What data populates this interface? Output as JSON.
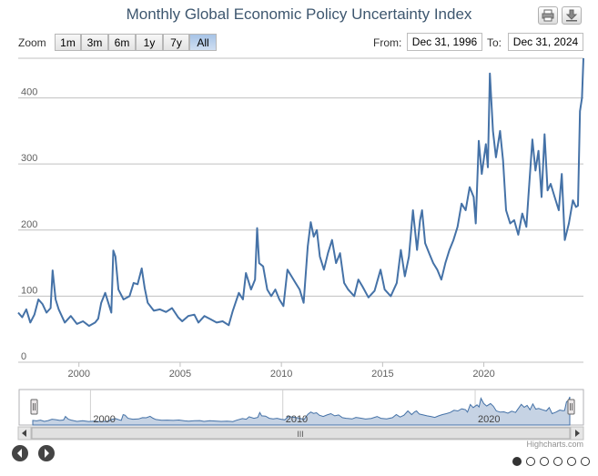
{
  "chart_data": {
    "type": "line",
    "title": "Monthly Global Economic Policy Uncertainty Index",
    "xlabel": "",
    "ylabel": "",
    "ylim": [
      0,
      460
    ],
    "xlim": [
      1997,
      2024.92
    ],
    "x_ticks": [
      "2000",
      "2005",
      "2010",
      "2015",
      "2020"
    ],
    "y_ticks": [
      "0",
      "100",
      "200",
      "300",
      "400"
    ],
    "grid": true,
    "series": [
      {
        "name": "",
        "color": "#4572A7",
        "points": [
          [
            1997.0,
            75
          ],
          [
            1997.2,
            68
          ],
          [
            1997.4,
            80
          ],
          [
            1997.6,
            60
          ],
          [
            1997.8,
            72
          ],
          [
            1998.0,
            95
          ],
          [
            1998.2,
            88
          ],
          [
            1998.4,
            75
          ],
          [
            1998.6,
            82
          ],
          [
            1998.7,
            139
          ],
          [
            1998.85,
            95
          ],
          [
            1999.0,
            80
          ],
          [
            1999.3,
            60
          ],
          [
            1999.6,
            70
          ],
          [
            1999.9,
            58
          ],
          [
            2000.2,
            62
          ],
          [
            2000.5,
            55
          ],
          [
            2000.8,
            60
          ],
          [
            2000.95,
            66
          ],
          [
            2001.1,
            90
          ],
          [
            2001.3,
            105
          ],
          [
            2001.5,
            85
          ],
          [
            2001.6,
            75
          ],
          [
            2001.7,
            169
          ],
          [
            2001.8,
            160
          ],
          [
            2001.95,
            110
          ],
          [
            2002.2,
            95
          ],
          [
            2002.5,
            100
          ],
          [
            2002.7,
            120
          ],
          [
            2002.9,
            118
          ],
          [
            2003.1,
            142
          ],
          [
            2003.25,
            112
          ],
          [
            2003.4,
            90
          ],
          [
            2003.7,
            78
          ],
          [
            2004.0,
            80
          ],
          [
            2004.3,
            76
          ],
          [
            2004.6,
            82
          ],
          [
            2004.9,
            68
          ],
          [
            2005.1,
            62
          ],
          [
            2005.4,
            70
          ],
          [
            2005.7,
            72
          ],
          [
            2005.9,
            60
          ],
          [
            2006.2,
            70
          ],
          [
            2006.5,
            65
          ],
          [
            2006.8,
            60
          ],
          [
            2007.1,
            62
          ],
          [
            2007.4,
            56
          ],
          [
            2007.6,
            78
          ],
          [
            2007.9,
            105
          ],
          [
            2008.1,
            95
          ],
          [
            2008.25,
            135
          ],
          [
            2008.5,
            110
          ],
          [
            2008.7,
            125
          ],
          [
            2008.8,
            203
          ],
          [
            2008.9,
            150
          ],
          [
            2009.1,
            145
          ],
          [
            2009.3,
            110
          ],
          [
            2009.5,
            100
          ],
          [
            2009.7,
            110
          ],
          [
            2009.9,
            95
          ],
          [
            2010.1,
            85
          ],
          [
            2010.3,
            140
          ],
          [
            2010.5,
            130
          ],
          [
            2010.7,
            120
          ],
          [
            2010.9,
            110
          ],
          [
            2011.1,
            90
          ],
          [
            2011.3,
            175
          ],
          [
            2011.45,
            212
          ],
          [
            2011.6,
            190
          ],
          [
            2011.75,
            200
          ],
          [
            2011.9,
            160
          ],
          [
            2012.1,
            140
          ],
          [
            2012.3,
            165
          ],
          [
            2012.5,
            185
          ],
          [
            2012.7,
            150
          ],
          [
            2012.9,
            165
          ],
          [
            2013.1,
            120
          ],
          [
            2013.3,
            110
          ],
          [
            2013.6,
            100
          ],
          [
            2013.8,
            125
          ],
          [
            2014.0,
            115
          ],
          [
            2014.3,
            98
          ],
          [
            2014.6,
            108
          ],
          [
            2014.9,
            140
          ],
          [
            2015.1,
            110
          ],
          [
            2015.4,
            100
          ],
          [
            2015.7,
            120
          ],
          [
            2015.9,
            170
          ],
          [
            2016.1,
            130
          ],
          [
            2016.3,
            160
          ],
          [
            2016.5,
            230
          ],
          [
            2016.7,
            170
          ],
          [
            2016.85,
            215
          ],
          [
            2016.95,
            230
          ],
          [
            2017.1,
            180
          ],
          [
            2017.3,
            165
          ],
          [
            2017.5,
            150
          ],
          [
            2017.7,
            140
          ],
          [
            2017.9,
            125
          ],
          [
            2018.1,
            150
          ],
          [
            2018.3,
            170
          ],
          [
            2018.5,
            185
          ],
          [
            2018.7,
            205
          ],
          [
            2018.9,
            240
          ],
          [
            2019.1,
            230
          ],
          [
            2019.3,
            265
          ],
          [
            2019.5,
            250
          ],
          [
            2019.6,
            210
          ],
          [
            2019.75,
            335
          ],
          [
            2019.9,
            285
          ],
          [
            2020.1,
            330
          ],
          [
            2020.2,
            295
          ],
          [
            2020.3,
            437
          ],
          [
            2020.45,
            350
          ],
          [
            2020.6,
            310
          ],
          [
            2020.8,
            350
          ],
          [
            2020.95,
            305
          ],
          [
            2021.1,
            230
          ],
          [
            2021.3,
            210
          ],
          [
            2021.5,
            215
          ],
          [
            2021.7,
            193
          ],
          [
            2021.9,
            225
          ],
          [
            2022.1,
            205
          ],
          [
            2022.2,
            250
          ],
          [
            2022.4,
            337
          ],
          [
            2022.55,
            290
          ],
          [
            2022.7,
            320
          ],
          [
            2022.85,
            250
          ],
          [
            2023.0,
            345
          ],
          [
            2023.15,
            260
          ],
          [
            2023.3,
            270
          ],
          [
            2023.5,
            250
          ],
          [
            2023.7,
            230
          ],
          [
            2023.85,
            285
          ],
          [
            2024.0,
            185
          ],
          [
            2024.2,
            210
          ],
          [
            2024.4,
            245
          ],
          [
            2024.55,
            235
          ],
          [
            2024.65,
            237
          ],
          [
            2024.75,
            380
          ],
          [
            2024.85,
            400
          ],
          [
            2024.92,
            460
          ]
        ]
      }
    ]
  },
  "toolbar": {
    "zoom_label": "Zoom",
    "ranges": [
      "1m",
      "3m",
      "6m",
      "1y",
      "7y",
      "All"
    ],
    "active_range": "All",
    "from_label": "From:",
    "from_value": "Dec 31, 1996",
    "to_label": "To:",
    "to_value": "Dec 31, 2024"
  },
  "navigator": {
    "x_ticks": [
      "2000",
      "2010",
      "2020"
    ],
    "scroll_grip": "III"
  },
  "credits": "Highcharts.com",
  "colors": {
    "line": "#4572A7",
    "title": "#3E576F",
    "grid": "#C0C0C0",
    "navigator_fill": "#C6D3E4"
  },
  "icons": {
    "print": "printer-icon",
    "export": "download-icon",
    "prev": "chevron-left-icon",
    "next": "chevron-right-icon"
  },
  "pager": {
    "count": 6,
    "active": 0
  }
}
